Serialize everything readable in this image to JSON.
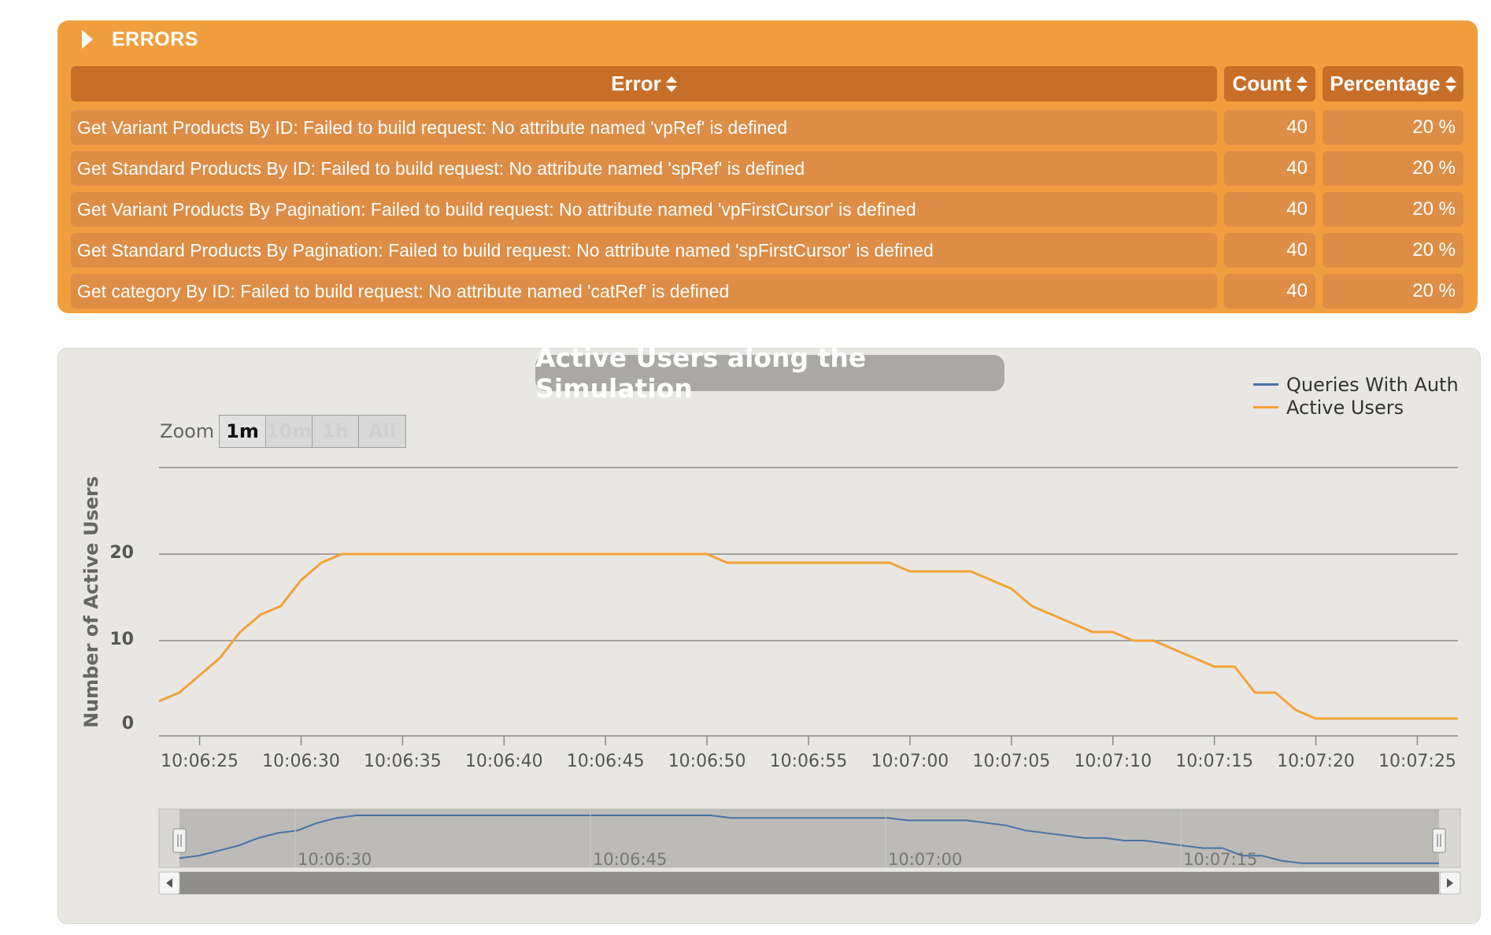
{
  "errors": {
    "title": "ERRORS",
    "columns": {
      "error": "Error",
      "count": "Count",
      "percentage": "Percentage"
    },
    "rows": [
      {
        "error": "Get Variant Products By ID: Failed to build request: No attribute named 'vpRef' is defined",
        "count": "40",
        "percentage": "20 %"
      },
      {
        "error": "Get Standard Products By ID: Failed to build request: No attribute named 'spRef' is defined",
        "count": "40",
        "percentage": "20 %"
      },
      {
        "error": "Get Variant Products By Pagination: Failed to build request: No attribute named 'vpFirstCursor' is defined",
        "count": "40",
        "percentage": "20 %"
      },
      {
        "error": "Get Standard Products By Pagination: Failed to build request: No attribute named 'spFirstCursor' is defined",
        "count": "40",
        "percentage": "20 %"
      },
      {
        "error": "Get category By ID: Failed to build request: No attribute named 'catRef' is defined",
        "count": "40",
        "percentage": "20 %"
      }
    ]
  },
  "zoom": {
    "label": "Zoom",
    "buttons": [
      "1m",
      "10m",
      "1h",
      "All"
    ],
    "active": "1m"
  },
  "colors": {
    "panel_orange": "#f19e3e",
    "header_orange": "#c76f29",
    "active_users": "#f4a236",
    "queries_with_auth": "#4572a7"
  },
  "chart_data": {
    "type": "line",
    "title": "Active Users along the Simulation",
    "ylabel": "Number of Active Users",
    "xlabel": "",
    "ylim": [
      0,
      30
    ],
    "yticks": [
      0,
      10,
      20
    ],
    "xtick_labels": [
      "10:06:25",
      "10:06:30",
      "10:06:35",
      "10:06:40",
      "10:06:45",
      "10:06:50",
      "10:06:55",
      "10:07:00",
      "10:07:05",
      "10:07:10",
      "10:07:15",
      "10:07:20",
      "10:07:25"
    ],
    "xlim": [
      "10:06:23",
      "10:07:27"
    ],
    "legend_position": "top-right",
    "series": [
      {
        "name": "Queries With Auth",
        "values": []
      },
      {
        "name": "Active Users",
        "points": [
          [
            "10:06:23",
            3
          ],
          [
            "10:06:24",
            4
          ],
          [
            "10:06:25",
            6
          ],
          [
            "10:06:26",
            8
          ],
          [
            "10:06:27",
            11
          ],
          [
            "10:06:28",
            13
          ],
          [
            "10:06:29",
            14
          ],
          [
            "10:06:30",
            17
          ],
          [
            "10:06:31",
            19
          ],
          [
            "10:06:32",
            20
          ],
          [
            "10:06:50",
            20
          ],
          [
            "10:06:51",
            19
          ],
          [
            "10:06:59",
            19
          ],
          [
            "10:07:00",
            18
          ],
          [
            "10:07:03",
            18
          ],
          [
            "10:07:05",
            16
          ],
          [
            "10:07:06",
            14
          ],
          [
            "10:07:09",
            11
          ],
          [
            "10:07:10",
            11
          ],
          [
            "10:07:11",
            10
          ],
          [
            "10:07:12",
            10
          ],
          [
            "10:07:15",
            7
          ],
          [
            "10:07:16",
            7
          ],
          [
            "10:07:17",
            4
          ],
          [
            "10:07:18",
            4
          ],
          [
            "10:07:19",
            2
          ],
          [
            "10:07:20",
            1
          ],
          [
            "10:07:27",
            1
          ]
        ]
      }
    ],
    "navigator": {
      "tick_labels": [
        "10:06:30",
        "10:06:45",
        "10:07:00",
        "10:07:15"
      ]
    }
  }
}
